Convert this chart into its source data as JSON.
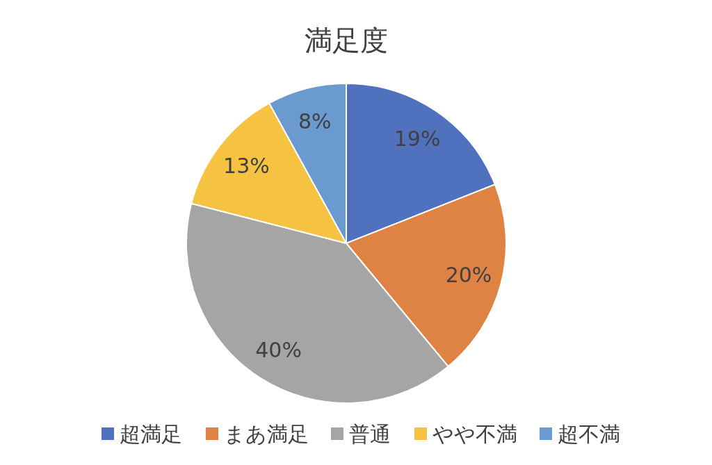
{
  "chart_data": {
    "type": "pie",
    "title": "満足度",
    "categories": [
      "超満足",
      "まあ満足",
      "普通",
      "やや不満",
      "超不満"
    ],
    "values": [
      19,
      20,
      40,
      13,
      8
    ],
    "value_labels": [
      "19%",
      "20%",
      "40%",
      "13%",
      "8%"
    ],
    "colors": [
      "#4f71be",
      "#de8344",
      "#a5a5a5",
      "#f5c242",
      "#6a9ad0"
    ],
    "legend": "bottom"
  }
}
